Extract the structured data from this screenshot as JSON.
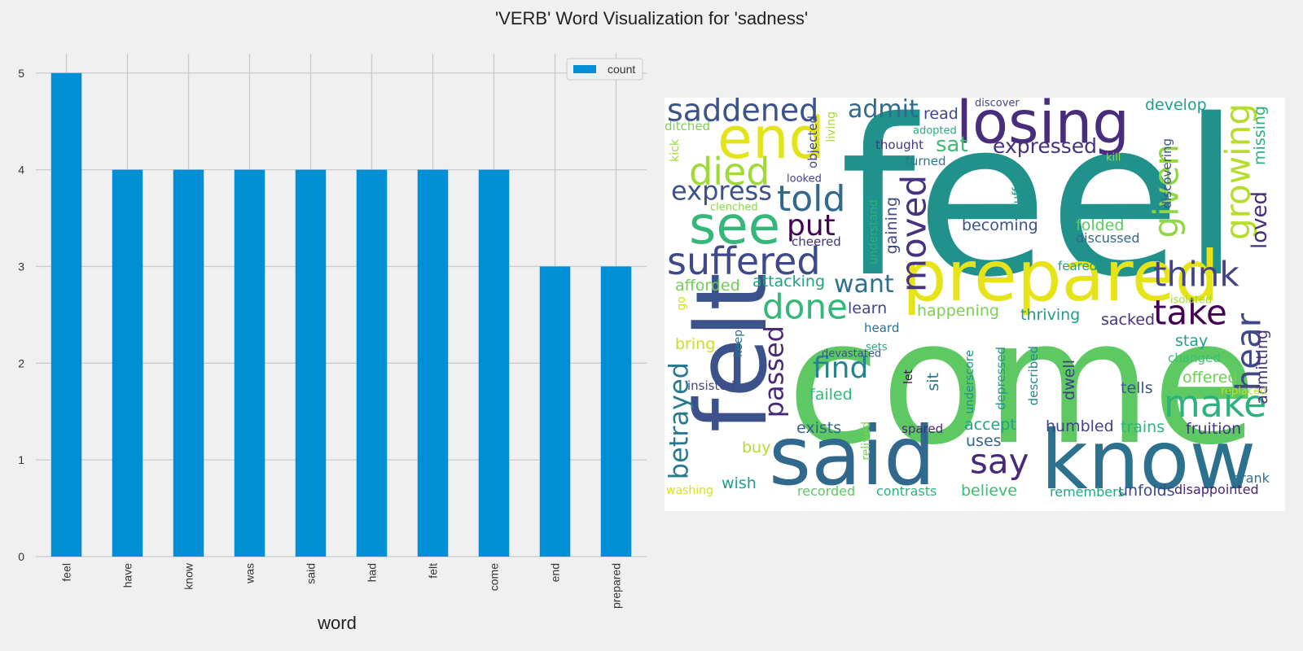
{
  "figure": {
    "title": "'VERB' Word Visualization for 'sadness'"
  },
  "chart_data": [
    {
      "type": "bar",
      "title": "",
      "xlabel": "word",
      "ylabel": "",
      "categories": [
        "feel",
        "have",
        "know",
        "was",
        "said",
        "had",
        "felt",
        "come",
        "end",
        "prepared"
      ],
      "series": [
        {
          "name": "count",
          "values": [
            5,
            4,
            4,
            4,
            4,
            4,
            4,
            4,
            3,
            3
          ]
        }
      ],
      "ylim": [
        0,
        5.2
      ],
      "yticks": [
        0,
        1,
        2,
        3,
        4,
        5
      ],
      "grid": true,
      "legend": "top-right",
      "colors": {
        "bar": "#008fd5",
        "grid": "#cbcbcb",
        "background": "#f0f0f0"
      }
    }
  ],
  "wordcloud": {
    "words": [
      {
        "t": "feel",
        "c": "#21918c"
      },
      {
        "t": "come",
        "c": "#5ec962"
      },
      {
        "t": "felt",
        "c": "#3b528b"
      },
      {
        "t": "said",
        "c": "#31688e"
      },
      {
        "t": "know",
        "c": "#2c728e"
      },
      {
        "t": "prepared",
        "c": "#e6e419"
      },
      {
        "t": "losing",
        "c": "#472d7b"
      },
      {
        "t": "end",
        "c": "#e2e418"
      },
      {
        "t": "see",
        "c": "#35b779"
      },
      {
        "t": "suffered",
        "c": "#3e4989"
      },
      {
        "t": "died",
        "c": "#a0da39"
      },
      {
        "t": "saddened",
        "c": "#3b528b"
      },
      {
        "t": "told",
        "c": "#31688e"
      },
      {
        "t": "done",
        "c": "#35b779"
      },
      {
        "t": "take",
        "c": "#440154"
      },
      {
        "t": "hear",
        "c": "#3e4989"
      },
      {
        "t": "make",
        "c": "#2db27d"
      },
      {
        "t": "think",
        "c": "#414487"
      },
      {
        "t": "say",
        "c": "#482878"
      },
      {
        "t": "growing",
        "c": "#b5de2b"
      },
      {
        "t": "given",
        "c": "#90d743"
      },
      {
        "t": "moved",
        "c": "#46327e"
      },
      {
        "t": "express",
        "c": "#3b528b"
      },
      {
        "t": "passed",
        "c": "#482878"
      },
      {
        "t": "find",
        "c": "#26828e"
      },
      {
        "t": "betrayed",
        "c": "#2a788e"
      },
      {
        "t": "put",
        "c": "#440154"
      },
      {
        "t": "admit",
        "c": "#31688e"
      },
      {
        "t": "want",
        "c": "#2c728e"
      },
      {
        "t": "expressed",
        "c": "#46327e"
      },
      {
        "t": "loved",
        "c": "#472d7b"
      },
      {
        "t": "sat",
        "c": "#3dbc74"
      },
      {
        "t": "wish",
        "c": "#1f9e89"
      },
      {
        "t": "offered",
        "c": "#6ece58"
      },
      {
        "t": "admitting",
        "c": "#46327e"
      },
      {
        "t": "develop",
        "c": "#1f9e89"
      },
      {
        "t": "read",
        "c": "#404588"
      },
      {
        "t": "becoming",
        "c": "#3b528b"
      },
      {
        "t": "folded",
        "c": "#5ec962"
      },
      {
        "t": "accept",
        "c": "#20a486"
      },
      {
        "t": "tells",
        "c": "#39568c"
      },
      {
        "t": "stay",
        "c": "#1fa088"
      },
      {
        "t": "fruition",
        "c": "#46337f"
      },
      {
        "t": "happening",
        "c": "#7ad151"
      },
      {
        "t": "thriving",
        "c": "#1e9c89"
      },
      {
        "t": "sacked",
        "c": "#46327e"
      },
      {
        "t": "believe",
        "c": "#3dbc74"
      },
      {
        "t": "missing",
        "c": "#29af7f"
      },
      {
        "t": "dwell",
        "c": "#433e85"
      },
      {
        "t": "attacking",
        "c": "#1fa188"
      },
      {
        "t": "afforded",
        "c": "#6ece58"
      },
      {
        "t": "learn",
        "c": "#3f4788"
      },
      {
        "t": "failed",
        "c": "#35b779"
      },
      {
        "t": "exists",
        "c": "#33638d"
      },
      {
        "t": "uses",
        "c": "#31688e"
      },
      {
        "t": "humbled",
        "c": "#414487"
      },
      {
        "t": "trains",
        "c": "#2fb47c"
      },
      {
        "t": "sit",
        "c": "#2a788e"
      },
      {
        "t": "buy",
        "c": "#b5de2b"
      },
      {
        "t": "bring",
        "c": "#c8e020"
      },
      {
        "t": "unfolds",
        "c": "#3e4989"
      },
      {
        "t": "disappointed",
        "c": "#482475"
      },
      {
        "t": "drank",
        "c": "#2c728e"
      },
      {
        "t": "contrasts",
        "c": "#2db27d"
      },
      {
        "t": "recorded",
        "c": "#5ec962"
      },
      {
        "t": "remembers",
        "c": "#22a884"
      },
      {
        "t": "washing",
        "c": "#d8e219"
      },
      {
        "t": "gaining",
        "c": "#3e4989"
      },
      {
        "t": "discussed",
        "c": "#31688e"
      },
      {
        "t": "cheered",
        "c": "#46337f"
      },
      {
        "t": "feared",
        "c": "#1f9e89"
      },
      {
        "t": "changed",
        "c": "#3dbc74"
      },
      {
        "t": "heard",
        "c": "#2c728e"
      },
      {
        "t": "thought",
        "c": "#453781"
      },
      {
        "t": "turned",
        "c": "#2a788e"
      },
      {
        "t": "insisted",
        "c": "#414487"
      },
      {
        "t": "spared",
        "c": "#482878"
      },
      {
        "t": "ditched",
        "c": "#7ad151"
      },
      {
        "t": "clenched",
        "c": "#8bd646"
      },
      {
        "t": "kill",
        "c": "#95d840"
      },
      {
        "t": "isolated",
        "c": "#a2da37"
      },
      {
        "t": "devastated",
        "c": "#3b528b"
      },
      {
        "t": "replaced",
        "c": "#c0df25"
      },
      {
        "t": "discover",
        "c": "#3f4788"
      },
      {
        "t": "adopted",
        "c": "#27ad81"
      },
      {
        "t": "looked",
        "c": "#424086"
      },
      {
        "t": "sets",
        "c": "#27ad81"
      },
      {
        "t": "living",
        "c": "#a8db34"
      },
      {
        "t": "objected",
        "c": "#3e4989"
      },
      {
        "t": "kick",
        "c": "#a0da39"
      },
      {
        "t": "understand",
        "c": "#29af7f"
      },
      {
        "t": "suffer",
        "c": "#1f9a8a"
      },
      {
        "t": "discovering",
        "c": "#3b528b"
      },
      {
        "t": "keep",
        "c": "#2c728e"
      },
      {
        "t": "go",
        "c": "#d0e11c"
      },
      {
        "t": "let",
        "c": "#440154"
      },
      {
        "t": "underscore",
        "c": "#21918c"
      },
      {
        "t": "depressed",
        "c": "#1f968b"
      },
      {
        "t": "described",
        "c": "#23888e"
      },
      {
        "t": "relived",
        "c": "#7ad151"
      }
    ]
  }
}
